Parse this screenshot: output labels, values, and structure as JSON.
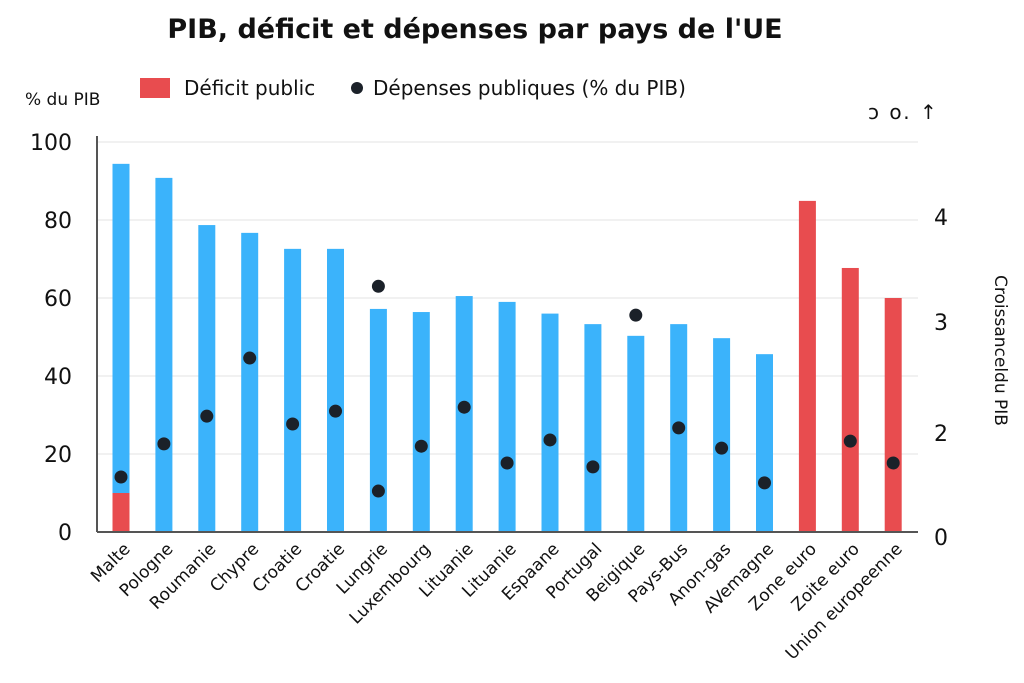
{
  "chart_data": {
    "type": "bar",
    "title": "PIB, déficit et dépenses par pays de l'UE",
    "ylabel": "% du PIB",
    "y2label": "Croissanceldu PIB",
    "top_right_glyphs": "ↄ  o. ↑",
    "ylim": [
      0,
      100
    ],
    "yticks": [
      0,
      20,
      40,
      60,
      80,
      100
    ],
    "y2ticks": [
      "4",
      "3",
      "2",
      "0"
    ],
    "grid": true,
    "legend_placement": "top",
    "colors": {
      "bars": "#3bb3fb",
      "deficit": "#e84c4f",
      "dots": "#1b2129"
    },
    "categories": [
      "Malte",
      "Pologne",
      "Roumanie",
      "Chypre",
      "Croatie",
      "Croatie",
      "Lungrie",
      "Luxembourg",
      "Lituanie",
      "Lituanie",
      "Espaane",
      "Portugal",
      "Beigique",
      "Pays-Bus",
      "Anon-gas",
      "AVemagne",
      "Zone euro",
      "Zoite euro",
      "Union europeenne"
    ],
    "series": [
      {
        "values": [
          94.4,
          90.8,
          78.7,
          76.7,
          72.6,
          72.6,
          57.2,
          56.4,
          60.5,
          59,
          56,
          53.3,
          50.3,
          53.3,
          49.7,
          45.6,
          null,
          null,
          null
        ]
      },
      {
        "name": "Déficit public",
        "values": [
          10,
          null,
          null,
          null,
          null,
          null,
          null,
          null,
          null,
          null,
          null,
          null,
          null,
          null,
          null,
          null,
          84.9,
          67.7,
          60
        ]
      },
      {
        "name": "Dépenses publiques (% du PIB)",
        "type": "scatter",
        "values": [
          [
            14.1
          ],
          [
            22.6
          ],
          [
            29.7
          ],
          [
            44.6
          ],
          [
            27.7
          ],
          [
            31
          ],
          [
            63,
            10.5
          ],
          [
            22
          ],
          [
            32
          ],
          [
            17.7
          ],
          [
            23.6
          ],
          [
            16.7
          ],
          [
            55.6
          ],
          [
            26.7
          ],
          [
            21.5
          ],
          [
            12.6
          ],
          [],
          [
            23.3
          ],
          [
            17.7
          ]
        ]
      }
    ]
  }
}
